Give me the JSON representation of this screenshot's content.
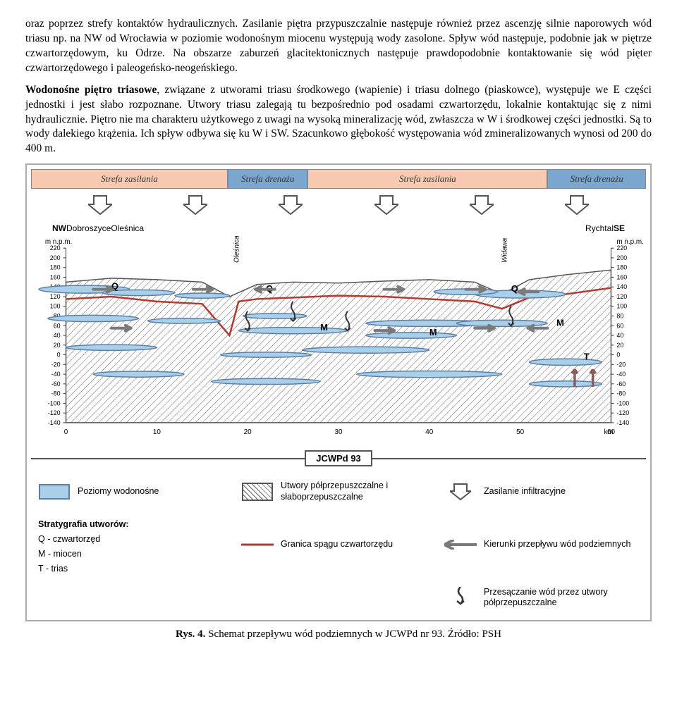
{
  "paragraphs": {
    "p1": "oraz poprzez strefy kontaktów hydraulicznych. Zasilanie piętra przypuszczalnie następuje również przez ascenzję silnie naporowych wód triasu np. na NW od Wrocławia w poziomie wodonośnym miocenu występują wody zasolone. Spływ wód następuje, podobnie jak w piętrze czwartorzędowym, ku Odrze. Na obszarze zaburzeń glacitektonicznych następuje prawdopodobnie kontaktowanie się wód pięter czwartorzędowego i paleogeńsko-neogeńskiego.",
    "p2_lead": "Wodonośne piętro triasowe",
    "p2_rest": ", związane z utworami triasu środkowego (wapienie) i triasu dolnego (piaskowce), występuje we E części jednostki i jest słabo rozpoznane. Utwory triasu zalegają tu bezpośrednio pod osadami czwartorzędu, lokalnie kontaktując się z nimi hydraulicznie. Piętro nie ma charakteru użytkowego z uwagi na wysoką mineralizację wód, zwłaszcza w W i środkowej części jednostki. Są to wody dalekiego krążenia. Ich spływ odbywa się ku W i SW. Szacunkowo głębokość występowania wód zmineralizowanych wynosi od 200 do 400 m."
  },
  "figure": {
    "zones": [
      {
        "label": "Strefa zasilania",
        "type": "recharge",
        "width": 32
      },
      {
        "label": "Strefa drenażu",
        "type": "drain",
        "width": 13
      },
      {
        "label": "Strefa zasilania",
        "type": "recharge",
        "width": 39
      },
      {
        "label": "Strefa drenażu",
        "type": "drain",
        "width": 16
      }
    ],
    "infil_arrows": 6,
    "top_labels": {
      "nw": "NW",
      "places": [
        "Dobroszyce",
        "Oleśnica",
        "Rychtal"
      ],
      "se": "SE"
    },
    "rivers": [
      "Oleśnica",
      "Widawa"
    ],
    "yaxis": {
      "label": "m n.p.m.",
      "ticks": [
        220,
        200,
        180,
        160,
        140,
        120,
        100,
        80,
        60,
        40,
        20,
        0,
        -20,
        -40,
        -60,
        -80,
        -100,
        -120,
        -140
      ]
    },
    "xaxis": {
      "ticks": [
        0,
        10,
        20,
        30,
        40,
        50,
        60
      ],
      "unit": "km"
    },
    "layer_markers": [
      "Q",
      "Q",
      "Q",
      "M",
      "M",
      "M",
      "T"
    ],
    "jcwpd_label": "JCWPd 93",
    "colors": {
      "aquifer_fill": "#a9cfe9",
      "aquifer_stroke": "#5c7ea8",
      "q_boundary": "#b23a2e",
      "hatch": "#666666",
      "flow_arrow": "#7a7a7a",
      "ascend_arrow": "#8b5a5a"
    },
    "legend": {
      "aquifer": "Poziomy wodonośne",
      "semiperm": "Utwory półprzepuszczalne i słaboprzepuszczalne",
      "infil": "Zasilanie infiltracyjne",
      "strat_head": "Stratygrafia utworów:",
      "strat_q": "Q - czwartorzęd",
      "strat_m": "M - miocen",
      "strat_t": "T - trias",
      "boundary": "Granica spągu czwartorzędu",
      "flow": "Kierunki przepływu wód podziemnych",
      "perc": "Przesączanie wód przez utwory półprzepuszczalne"
    },
    "caption_bold": "Rys. 4.",
    "caption_rest": " Schemat przepływu wód podziemnych w JCWPd nr 93. Źródło: PSH"
  }
}
